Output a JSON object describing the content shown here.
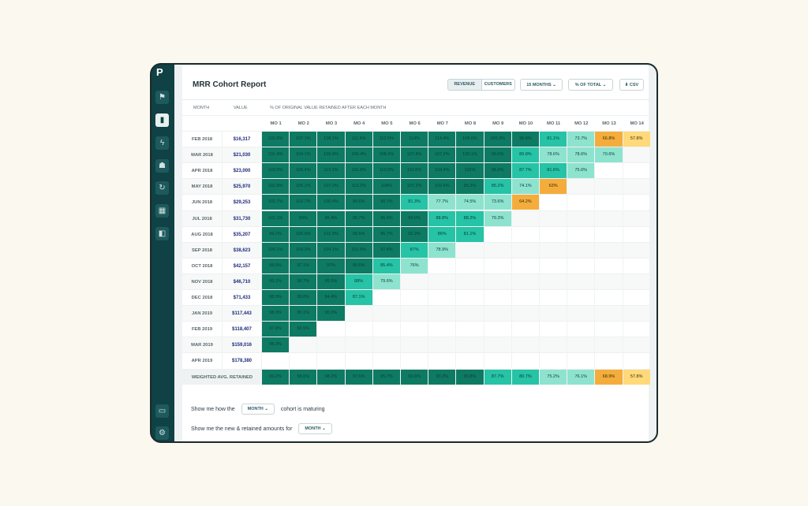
{
  "app": {
    "logo": "P"
  },
  "header": {
    "title": "MRR Cohort Report",
    "revenue": "REVENUE",
    "customers": "CUSTOMERS",
    "months": "15 MONTHS",
    "percent": "% OF TOTAL",
    "csv": "CSV"
  },
  "table": {
    "month_header": "MONTH",
    "value_header": "VALUE",
    "retained_header": "% OF ORIGINAL VALUE RETAINED AFTER EACH MONTH",
    "mo_headers": [
      "MO 1",
      "MO 2",
      "MO 3",
      "MO 4",
      "MO 5",
      "MO 6",
      "MO 7",
      "MO 8",
      "MO 9",
      "MO 10",
      "MO 11",
      "MO 12",
      "MO 13",
      "MO 14"
    ],
    "rows": [
      {
        "month": "FEB 2018",
        "value": "$16,317",
        "cells": [
          "102.8%",
          "107.1%",
          "108.1%",
          "111.5%",
          "112.5%",
          "114%",
          "114.4%",
          "109.6%",
          "105.3%",
          "90.8%",
          "81.1%",
          "73.7%",
          "66.8%",
          "57.8%"
        ]
      },
      {
        "month": "MAR 2018",
        "value": "$21,030",
        "cells": [
          "101.4%",
          "104.1%",
          "109.9%",
          "109.4%",
          "108.2%",
          "107.8%",
          "107.2%",
          "100.1%",
          "99.6%",
          "89.8%",
          "78.6%",
          "78.6%",
          "70.6%"
        ]
      },
      {
        "month": "APR 2018",
        "value": "$23,000",
        "cells": [
          "103.5%",
          "109.4%",
          "113.1%",
          "115.6%",
          "113.0%",
          "110.6%",
          "103.4%",
          "102%",
          "96.9%",
          "87.7%",
          "81.6%",
          "75.6%"
        ]
      },
      {
        "month": "MAY 2018",
        "value": "$25,970",
        "cells": [
          "102.8%",
          "105.1%",
          "107.2%",
          "113.2%",
          "108%",
          "107.2%",
          "102.6%",
          "95.2%",
          "85.2%",
          "74.1%",
          "63%"
        ]
      },
      {
        "month": "JUN 2018",
        "value": "$29,253",
        "cells": [
          "102.7%",
          "102.7%",
          "100.4%",
          "99.6%",
          "90.7%",
          "81.3%",
          "77.7%",
          "74.5%",
          "73.6%",
          "64.2%"
        ]
      },
      {
        "month": "JUL 2018",
        "value": "$31,730",
        "cells": [
          "101.1%",
          "99%",
          "95.4%",
          "96.7%",
          "95.6%",
          "94.0%",
          "88.8%",
          "88.2%",
          "79.3%"
        ]
      },
      {
        "month": "AUG 2018",
        "value": "$35,207",
        "cells": [
          "99.2%",
          "100.9%",
          "101.9%",
          "96.5%",
          "95.7%",
          "92.3%",
          "86%",
          "81.1%"
        ]
      },
      {
        "month": "SEP 2018",
        "value": "$38,623",
        "cells": [
          "100.1%",
          "104.3%",
          "104.1%",
          "101.5%",
          "97.4%",
          "87%",
          "78.9%"
        ]
      },
      {
        "month": "OCT 2018",
        "value": "$42,157",
        "cells": [
          "98.5%",
          "97.1%",
          "97%",
          "90.6%",
          "85.4%",
          "76%"
        ]
      },
      {
        "month": "NOV 2018",
        "value": "$46,710",
        "cells": [
          "99.1%",
          "96.7%",
          "95.5%",
          "88%",
          "79.6%"
        ]
      },
      {
        "month": "DEC 2018",
        "value": "$71,433",
        "cells": [
          "98.9%",
          "99.8%",
          "94.4%",
          "87.1%"
        ]
      },
      {
        "month": "JAN 2019",
        "value": "$117,443",
        "cells": [
          "98.3%",
          "95.1%",
          "90.3%"
        ]
      },
      {
        "month": "FEB 2019",
        "value": "$118,407",
        "cells": [
          "97.8%",
          "93.5%"
        ]
      },
      {
        "month": "MAR 2019",
        "value": "$159,016",
        "cells": [
          "98.3%"
        ]
      },
      {
        "month": "APR 2019",
        "value": "$178,380",
        "cells": []
      }
    ],
    "avg": {
      "label": "WEIGHTED AVG. RETAINED",
      "cells": [
        "99.2%",
        "98.6%",
        "98.2%",
        "97.6%",
        "95.7%",
        "93.6%",
        "93.2%",
        "90.8%",
        "87.7%",
        "80.7%",
        "75.2%",
        "76.1%",
        "68.9%",
        "57.8%"
      ]
    }
  },
  "footer": {
    "line1_pre": "Show me how the",
    "line1_dd": "MONTH",
    "line1_post": "cohort is maturing",
    "line2_pre": "Show me the new & retained amounts for",
    "line2_dd": "MONTH"
  }
}
